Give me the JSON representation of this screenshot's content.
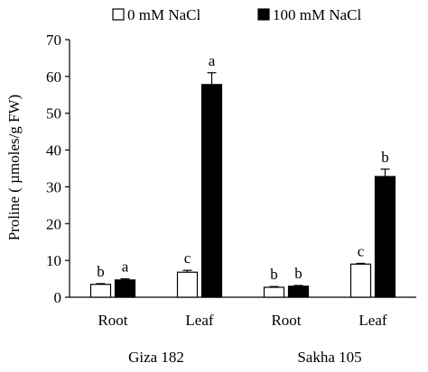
{
  "chart_data": {
    "type": "bar",
    "title": "",
    "xlabel": "",
    "ylabel": "Proline ( µmoles/g FW)",
    "ylim": [
      0,
      70
    ],
    "yticks": [
      0,
      10,
      20,
      30,
      40,
      50,
      60,
      70
    ],
    "grid": false,
    "legend_position": "top",
    "categories": [
      "Root",
      "Leaf",
      "Root",
      "Leaf"
    ],
    "groups": [
      {
        "label": "Giza 182",
        "categories": [
          0,
          1
        ]
      },
      {
        "label": "Sakha 105",
        "categories": [
          2,
          3
        ]
      }
    ],
    "series": [
      {
        "name": "0 mM NaCl",
        "color": "#ffffff",
        "values": [
          3.5,
          6.8,
          2.7,
          9.0
        ],
        "errors": [
          0.2,
          0.5,
          0.2,
          0.2
        ],
        "letters": [
          "b",
          "c",
          "b",
          "c"
        ]
      },
      {
        "name": "100 mM NaCl",
        "color": "#000000",
        "values": [
          4.7,
          57.8,
          3.0,
          32.8
        ],
        "errors": [
          0.3,
          3.2,
          0.2,
          2.0
        ],
        "letters": [
          "a",
          "a",
          "b",
          "b"
        ]
      }
    ]
  }
}
